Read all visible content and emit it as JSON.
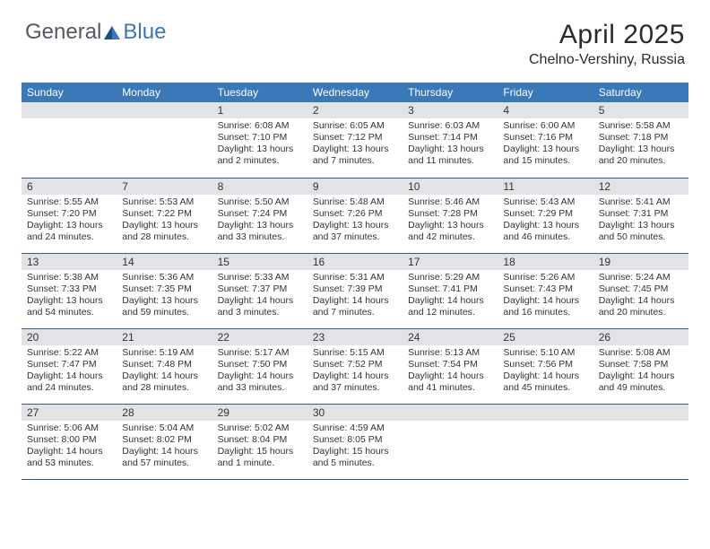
{
  "brand": {
    "part1": "General",
    "part2": "Blue"
  },
  "title": "April 2025",
  "location": "Chelno-Vershiny, Russia",
  "colors": {
    "header_bg": "#3a78b8",
    "header_text": "#ffffff",
    "daynum_bg": "#e1e3e6",
    "cell_border": "#3a5a80",
    "logo_gray": "#555a60",
    "logo_blue": "#3a78b8"
  },
  "weekdays": [
    "Sunday",
    "Monday",
    "Tuesday",
    "Wednesday",
    "Thursday",
    "Friday",
    "Saturday"
  ],
  "weeks": [
    [
      null,
      null,
      {
        "n": "1",
        "sunrise": "6:08 AM",
        "sunset": "7:10 PM",
        "daylight": "13 hours and 2 minutes."
      },
      {
        "n": "2",
        "sunrise": "6:05 AM",
        "sunset": "7:12 PM",
        "daylight": "13 hours and 7 minutes."
      },
      {
        "n": "3",
        "sunrise": "6:03 AM",
        "sunset": "7:14 PM",
        "daylight": "13 hours and 11 minutes."
      },
      {
        "n": "4",
        "sunrise": "6:00 AM",
        "sunset": "7:16 PM",
        "daylight": "13 hours and 15 minutes."
      },
      {
        "n": "5",
        "sunrise": "5:58 AM",
        "sunset": "7:18 PM",
        "daylight": "13 hours and 20 minutes."
      }
    ],
    [
      {
        "n": "6",
        "sunrise": "5:55 AM",
        "sunset": "7:20 PM",
        "daylight": "13 hours and 24 minutes."
      },
      {
        "n": "7",
        "sunrise": "5:53 AM",
        "sunset": "7:22 PM",
        "daylight": "13 hours and 28 minutes."
      },
      {
        "n": "8",
        "sunrise": "5:50 AM",
        "sunset": "7:24 PM",
        "daylight": "13 hours and 33 minutes."
      },
      {
        "n": "9",
        "sunrise": "5:48 AM",
        "sunset": "7:26 PM",
        "daylight": "13 hours and 37 minutes."
      },
      {
        "n": "10",
        "sunrise": "5:46 AM",
        "sunset": "7:28 PM",
        "daylight": "13 hours and 42 minutes."
      },
      {
        "n": "11",
        "sunrise": "5:43 AM",
        "sunset": "7:29 PM",
        "daylight": "13 hours and 46 minutes."
      },
      {
        "n": "12",
        "sunrise": "5:41 AM",
        "sunset": "7:31 PM",
        "daylight": "13 hours and 50 minutes."
      }
    ],
    [
      {
        "n": "13",
        "sunrise": "5:38 AM",
        "sunset": "7:33 PM",
        "daylight": "13 hours and 54 minutes."
      },
      {
        "n": "14",
        "sunrise": "5:36 AM",
        "sunset": "7:35 PM",
        "daylight": "13 hours and 59 minutes."
      },
      {
        "n": "15",
        "sunrise": "5:33 AM",
        "sunset": "7:37 PM",
        "daylight": "14 hours and 3 minutes."
      },
      {
        "n": "16",
        "sunrise": "5:31 AM",
        "sunset": "7:39 PM",
        "daylight": "14 hours and 7 minutes."
      },
      {
        "n": "17",
        "sunrise": "5:29 AM",
        "sunset": "7:41 PM",
        "daylight": "14 hours and 12 minutes."
      },
      {
        "n": "18",
        "sunrise": "5:26 AM",
        "sunset": "7:43 PM",
        "daylight": "14 hours and 16 minutes."
      },
      {
        "n": "19",
        "sunrise": "5:24 AM",
        "sunset": "7:45 PM",
        "daylight": "14 hours and 20 minutes."
      }
    ],
    [
      {
        "n": "20",
        "sunrise": "5:22 AM",
        "sunset": "7:47 PM",
        "daylight": "14 hours and 24 minutes."
      },
      {
        "n": "21",
        "sunrise": "5:19 AM",
        "sunset": "7:48 PM",
        "daylight": "14 hours and 28 minutes."
      },
      {
        "n": "22",
        "sunrise": "5:17 AM",
        "sunset": "7:50 PM",
        "daylight": "14 hours and 33 minutes."
      },
      {
        "n": "23",
        "sunrise": "5:15 AM",
        "sunset": "7:52 PM",
        "daylight": "14 hours and 37 minutes."
      },
      {
        "n": "24",
        "sunrise": "5:13 AM",
        "sunset": "7:54 PM",
        "daylight": "14 hours and 41 minutes."
      },
      {
        "n": "25",
        "sunrise": "5:10 AM",
        "sunset": "7:56 PM",
        "daylight": "14 hours and 45 minutes."
      },
      {
        "n": "26",
        "sunrise": "5:08 AM",
        "sunset": "7:58 PM",
        "daylight": "14 hours and 49 minutes."
      }
    ],
    [
      {
        "n": "27",
        "sunrise": "5:06 AM",
        "sunset": "8:00 PM",
        "daylight": "14 hours and 53 minutes."
      },
      {
        "n": "28",
        "sunrise": "5:04 AM",
        "sunset": "8:02 PM",
        "daylight": "14 hours and 57 minutes."
      },
      {
        "n": "29",
        "sunrise": "5:02 AM",
        "sunset": "8:04 PM",
        "daylight": "15 hours and 1 minute."
      },
      {
        "n": "30",
        "sunrise": "4:59 AM",
        "sunset": "8:05 PM",
        "daylight": "15 hours and 5 minutes."
      },
      null,
      null,
      null
    ]
  ],
  "labels": {
    "sunrise": "Sunrise:",
    "sunset": "Sunset:",
    "daylight": "Daylight:"
  }
}
